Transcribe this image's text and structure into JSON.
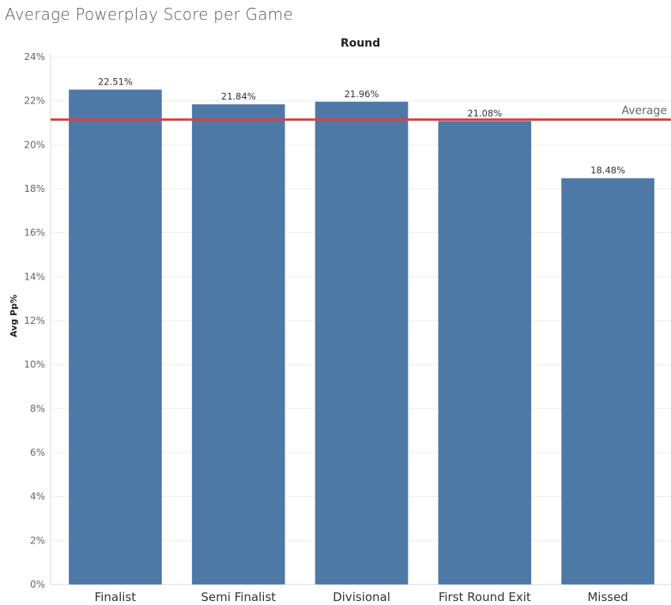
{
  "title": "Average Powerplay Score per Game",
  "chart_data": {
    "type": "bar",
    "column_header": "Round",
    "ylabel": "Avg Pp%",
    "categories": [
      "Finalist",
      "Semi Finalist",
      "Divisional",
      "First Round Exit",
      "Missed"
    ],
    "values": [
      22.51,
      21.84,
      21.96,
      21.08,
      18.48
    ],
    "data_labels": [
      "22.51%",
      "21.84%",
      "21.96%",
      "21.08%",
      "18.48%"
    ],
    "ylim": [
      0,
      24
    ],
    "yticks": [
      0,
      2,
      4,
      6,
      8,
      10,
      12,
      14,
      16,
      18,
      20,
      22,
      24
    ],
    "ytick_labels": [
      "0%",
      "2%",
      "4%",
      "6%",
      "8%",
      "10%",
      "12%",
      "14%",
      "16%",
      "18%",
      "20%",
      "22%",
      "24%"
    ],
    "reference_line": {
      "label": "Average",
      "value": 21.15
    },
    "grid": true,
    "bar_color": "#4e79a7",
    "reference_color": "#d94040"
  }
}
